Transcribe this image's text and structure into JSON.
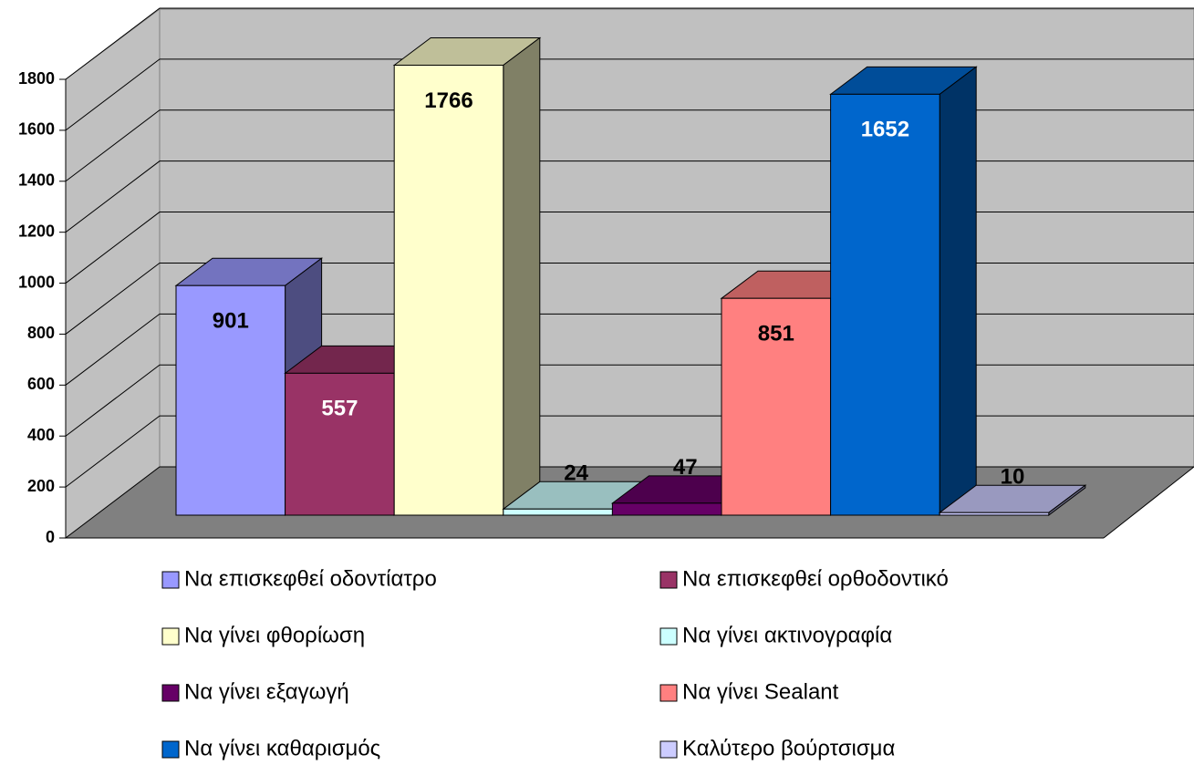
{
  "chart_data": {
    "type": "bar",
    "ylim": [
      0,
      1800
    ],
    "yticks": [
      0,
      200,
      400,
      600,
      800,
      1000,
      1200,
      1400,
      1600,
      1800
    ],
    "grid": true,
    "series": [
      {
        "name": "Να επισκεφθεί οδοντίατρο",
        "color": "#9999ff",
        "label_color": "#000000",
        "values": [
          901
        ]
      },
      {
        "name": "Να επισκεφθεί ορθοδοντικό",
        "color": "#993366",
        "label_color": "#ffffff",
        "values": [
          557
        ]
      },
      {
        "name": "Να γίνει φθορίωση",
        "color": "#ffffcc",
        "label_color": "#000000",
        "values": [
          1766
        ]
      },
      {
        "name": "Να γίνει ακτινογραφία",
        "color": "#ccffff",
        "label_color": "#000000",
        "values": [
          24
        ]
      },
      {
        "name": "Να γίνει εξαγωγή",
        "color": "#660066",
        "label_color": "#000000",
        "values": [
          47
        ]
      },
      {
        "name": "Να γίνει Sealant",
        "color": "#ff8080",
        "label_color": "#000000",
        "values": [
          851
        ]
      },
      {
        "name": "Να γίνει καθαρισμός",
        "color": "#0066cc",
        "label_color": "#ffffff",
        "values": [
          1652
        ]
      },
      {
        "name": "Καλύτερο βούρτσισμα",
        "color": "#ccccff",
        "label_color": "#000000",
        "values": [
          10
        ]
      }
    ]
  }
}
